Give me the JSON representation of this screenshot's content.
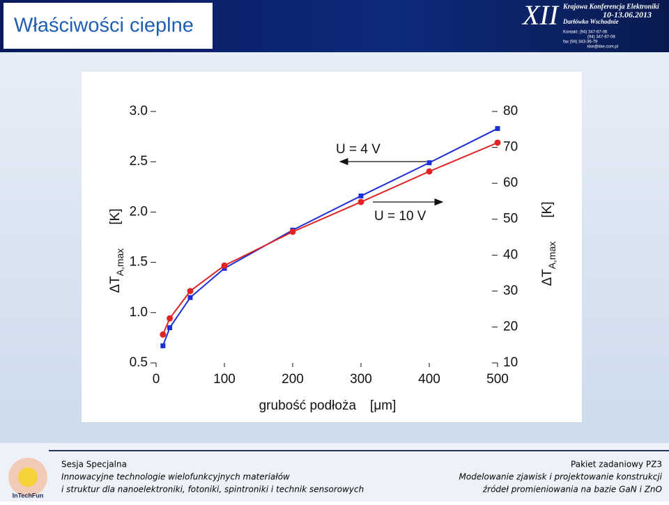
{
  "header": {
    "title": "Właściwości cieplne",
    "conference": "XII",
    "conference_name": "Krajowa Konferencja Elektroniki",
    "dates": "10-13.06.2013",
    "place": "Darłówko Wschodnie",
    "contact": [
      "Kontakt: (94) 347-87-06",
      "(94) 347-87-08",
      "fax (94) 343-36-79",
      "kke@kke.com.pl"
    ]
  },
  "chart_data": {
    "type": "line",
    "xlabel": "grubość podłoża",
    "xlabel_unit": "[μm]",
    "ylabel": "ΔT",
    "ylabel_sub": "A,max",
    "ylabel_unit": "[K]",
    "y2label": "ΔT",
    "y2label_sub": "A,max",
    "y2label_unit": "[K]",
    "annotations": [
      "U = 4 V",
      "U = 10 V"
    ],
    "x": [
      10,
      20,
      50,
      100,
      200,
      300,
      400,
      500
    ],
    "series": [
      {
        "name": "U = 4 V",
        "color": "#1c2fd6",
        "marker": "square",
        "values": [
          0.67,
          0.85,
          1.15,
          1.44,
          1.82,
          2.16,
          2.49,
          2.83
        ]
      },
      {
        "name": "U = 10 V",
        "color": "#e02424",
        "marker": "circle",
        "axis": "y2",
        "values": [
          17.9,
          22.4,
          30.0,
          37.1,
          46.5,
          54.8,
          63.3,
          71.3
        ]
      }
    ],
    "xlim": [
      0,
      500
    ],
    "xticks": [
      0,
      100,
      200,
      300,
      400,
      500
    ],
    "ylim": [
      0.5,
      3.0
    ],
    "yticks": [
      0.5,
      {
        "value": 1,
        "label": "1.0"
      },
      1.5,
      {
        "value": 2,
        "label": "2.0"
      },
      2.5,
      {
        "value": 3,
        "label": "3.0"
      }
    ],
    "y2lim": [
      10,
      80
    ],
    "y2ticks": [
      10,
      20,
      30,
      40,
      50,
      60,
      70,
      80
    ]
  },
  "footer": {
    "left": [
      "Sesja Specjalna",
      "Innowacyjne technologie wielofunkcyjnych materiałów",
      "i struktur dla nanoelektroniki, fotoniki, spintroniki i technik sensorowych"
    ],
    "right": [
      "Pakiet zadaniowy PZ3",
      "Modelowanie zjawisk i projektowanie konstrukcji",
      "źródeł promieniowania na bazie GaN i ZnO"
    ],
    "logo": "InTechFun"
  }
}
